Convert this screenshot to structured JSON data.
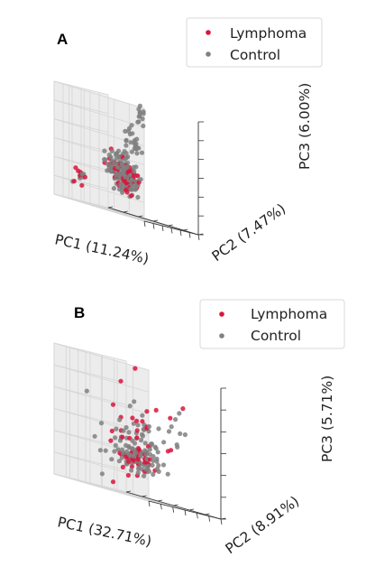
{
  "figure": {
    "panel_labels": [
      "A",
      "B"
    ],
    "colors": {
      "lymphoma": "#DC143C",
      "control": "#808080"
    }
  },
  "chart_data": [
    {
      "type": "scatter",
      "projection": "3d",
      "panel": "A",
      "title": "",
      "xlabel": "PC1 (11.24%)",
      "ylabel": "PC2 (7.47%)",
      "zlabel": "PC3 (6.00%)",
      "grid": true,
      "legend_position": "top-right",
      "series": [
        {
          "name": "Lymphoma",
          "color": "#DC143C",
          "clusters": [
            {
              "n": 38,
              "center": [
                0.3,
                0.4,
                0.3
              ],
              "spread": [
                0.06,
                0.05,
                0.05
              ]
            },
            {
              "n": 28,
              "center": [
                0.7,
                0.55,
                0.42
              ],
              "spread": [
                0.06,
                0.05,
                0.05
              ]
            },
            {
              "n": 9,
              "center": [
                0.93,
                0.25,
                0.22
              ],
              "spread": [
                0.02,
                0.05,
                0.05
              ]
            },
            {
              "n": 2,
              "center": [
                0.95,
                0.6,
                0.5
              ],
              "spread": [
                0.02,
                0.03,
                0.03
              ]
            }
          ]
        },
        {
          "name": "Control",
          "color": "#808080",
          "clusters": [
            {
              "n": 85,
              "center": [
                0.3,
                0.4,
                0.3
              ],
              "spread": [
                0.07,
                0.06,
                0.06
              ]
            },
            {
              "n": 70,
              "center": [
                0.7,
                0.55,
                0.42
              ],
              "spread": [
                0.07,
                0.06,
                0.06
              ]
            },
            {
              "n": 12,
              "center": [
                0.08,
                0.4,
                0.92
              ],
              "spread": [
                0.02,
                0.02,
                0.05
              ]
            },
            {
              "n": 25,
              "center": [
                0.22,
                0.4,
                0.62
              ],
              "spread": [
                0.05,
                0.05,
                0.07
              ]
            },
            {
              "n": 6,
              "center": [
                0.93,
                0.25,
                0.22
              ],
              "spread": [
                0.02,
                0.04,
                0.04
              ]
            }
          ]
        }
      ]
    },
    {
      "type": "scatter",
      "projection": "3d",
      "panel": "B",
      "title": "",
      "xlabel": "PC1 (32.71%)",
      "ylabel": "PC2 (8.91%)",
      "zlabel": "PC3 (5.71%)",
      "grid": true,
      "legend_position": "top-right",
      "series": [
        {
          "name": "Lymphoma",
          "color": "#DC143C",
          "clusters": [
            {
              "n": 30,
              "center": [
                0.42,
                0.45,
                0.28
              ],
              "spread": [
                0.08,
                0.08,
                0.06
              ]
            },
            {
              "n": 30,
              "center": [
                0.32,
                0.4,
                0.48
              ],
              "spread": [
                0.16,
                0.16,
                0.18
              ]
            }
          ]
        },
        {
          "name": "Control",
          "color": "#808080",
          "clusters": [
            {
              "n": 60,
              "center": [
                0.42,
                0.45,
                0.28
              ],
              "spread": [
                0.08,
                0.08,
                0.06
              ]
            },
            {
              "n": 70,
              "center": [
                0.4,
                0.45,
                0.45
              ],
              "spread": [
                0.18,
                0.18,
                0.16
              ]
            }
          ]
        }
      ]
    }
  ]
}
